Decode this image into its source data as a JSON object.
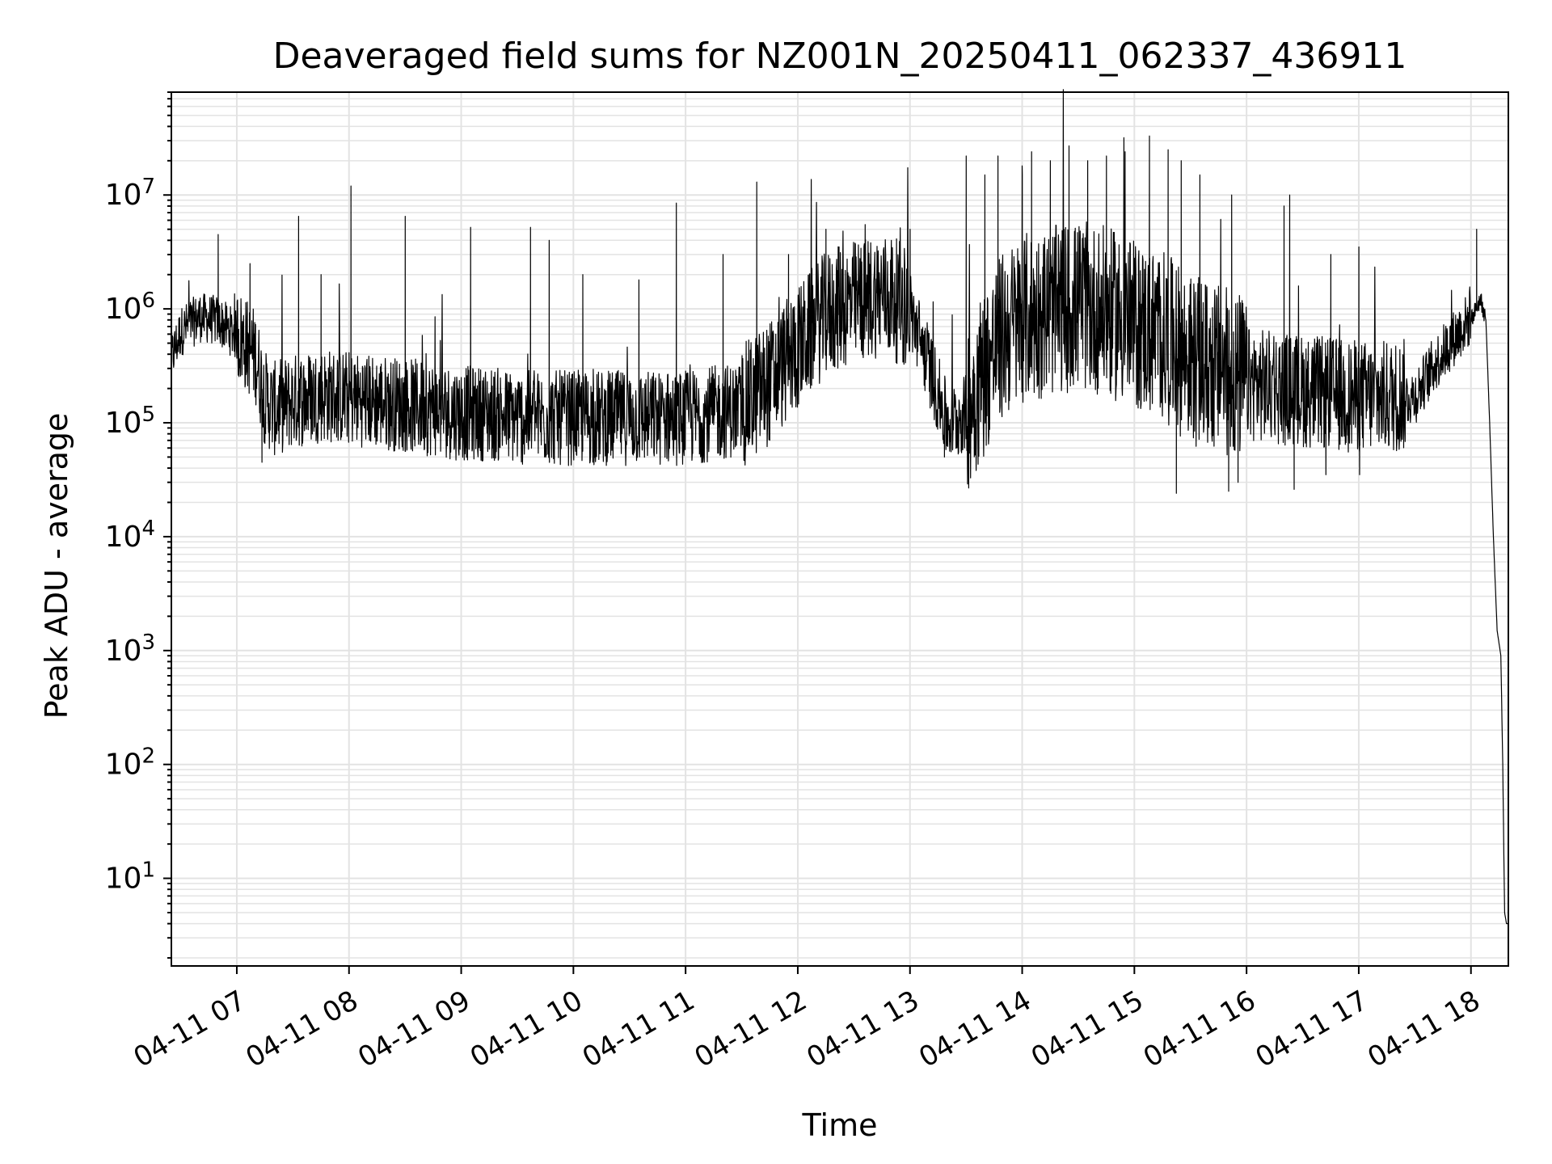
{
  "chart_data": {
    "type": "line",
    "title": "Deaveraged field sums for NZ001N_20250411_062337_436911",
    "xlabel": "Time",
    "ylabel": "Peak ADU - average",
    "x_ticks": [
      "04-11 07",
      "04-11 08",
      "04-11 09",
      "04-11 10",
      "04-11 11",
      "04-11 12",
      "04-11 13",
      "04-11 14",
      "04-11 15",
      "04-11 16",
      "04-11 17",
      "04-11 18"
    ],
    "y_ticks": [
      "10^1",
      "10^2",
      "10^3",
      "10^4",
      "10^5",
      "10^6",
      "10^7"
    ],
    "y_scale": "log",
    "xlim": [
      "2025-04-11 06:25",
      "2025-04-11 18:20"
    ],
    "ylim": [
      1.7,
      80000000
    ],
    "grid": true,
    "line_color": "#000000",
    "grid_color": "#e3e3e3",
    "series": [
      {
        "x": [
          "06:25",
          "06:30",
          "06:40",
          "06:50",
          "07:00",
          "07:10",
          "07:15",
          "07:20",
          "07:30",
          "07:45",
          "08:00",
          "08:15",
          "08:30",
          "08:45",
          "09:00",
          "09:15",
          "09:30",
          "09:45",
          "10:00",
          "10:15",
          "10:30",
          "10:45",
          "11:00",
          "11:15",
          "11:30",
          "11:45",
          "12:00",
          "12:15",
          "12:30",
          "12:45",
          "13:00",
          "13:10",
          "13:20",
          "13:30",
          "13:40",
          "13:50",
          "14:00",
          "14:15",
          "14:30",
          "14:45",
          "15:00",
          "15:15",
          "15:30",
          "15:45",
          "16:00",
          "16:15",
          "16:30",
          "16:45",
          "17:00",
          "17:15",
          "17:30",
          "17:40",
          "17:50",
          "18:00",
          "18:03",
          "18:05",
          "18:08",
          "18:10",
          "18:12",
          "18:14",
          "18:16",
          "18:17",
          "18:18",
          "18:19",
          "18:20"
        ],
        "y": [
          350000,
          600000,
          800000,
          750000,
          550000,
          350000,
          150000,
          120000,
          140000,
          160000,
          150000,
          140000,
          130000,
          120000,
          110000,
          110000,
          100000,
          100000,
          100000,
          100000,
          100000,
          100000,
          100000,
          110000,
          120000,
          200000,
          400000,
          800000,
          1000000,
          1200000,
          900000,
          300000,
          90000,
          110000,
          250000,
          500000,
          700000,
          800000,
          900000,
          800000,
          600000,
          500000,
          300000,
          250000,
          200000,
          180000,
          170000,
          160000,
          150000,
          150000,
          160000,
          300000,
          500000,
          800000,
          1000000,
          1200000,
          800000,
          100000,
          10000,
          1500,
          900,
          100,
          5,
          4,
          4
        ]
      }
    ],
    "spikes": [
      {
        "x": "06:50",
        "y": 4500000
      },
      {
        "x": "07:07",
        "y": 2500000
      },
      {
        "x": "07:33",
        "y": 6500000
      },
      {
        "x": "07:45",
        "y": 2000000
      },
      {
        "x": "08:01",
        "y": 12000000
      },
      {
        "x": "08:30",
        "y": 6500000
      },
      {
        "x": "09:05",
        "y": 5200000
      },
      {
        "x": "09:37",
        "y": 5200000
      },
      {
        "x": "09:47",
        "y": 4000000
      },
      {
        "x": "10:05",
        "y": 2000000
      },
      {
        "x": "10:35",
        "y": 1800000
      },
      {
        "x": "10:55",
        "y": 8500000
      },
      {
        "x": "11:20",
        "y": 3000000
      },
      {
        "x": "11:38",
        "y": 13000000
      },
      {
        "x": "11:55",
        "y": 3000000
      },
      {
        "x": "12:15",
        "y": 5000000
      },
      {
        "x": "12:22",
        "y": 3500000
      },
      {
        "x": "12:36",
        "y": 5500000
      },
      {
        "x": "12:50",
        "y": 4000000
      },
      {
        "x": "13:00",
        "y": 5000000
      },
      {
        "x": "13:30",
        "y": 22000000
      },
      {
        "x": "13:40",
        "y": 15000000
      },
      {
        "x": "13:47",
        "y": 22000000
      },
      {
        "x": "14:00",
        "y": 15000000
      },
      {
        "x": "14:05",
        "y": 24000000
      },
      {
        "x": "14:15",
        "y": 20000000
      },
      {
        "x": "14:25",
        "y": 27000000
      },
      {
        "x": "14:35",
        "y": 20000000
      },
      {
        "x": "14:45",
        "y": 22000000
      },
      {
        "x": "14:55",
        "y": 24000000
      },
      {
        "x": "15:08",
        "y": 33000000
      },
      {
        "x": "15:18",
        "y": 25000000
      },
      {
        "x": "15:25",
        "y": 20000000
      },
      {
        "x": "15:35",
        "y": 15000000
      },
      {
        "x": "15:52",
        "y": 10000000
      },
      {
        "x": "16:20",
        "y": 8000000
      },
      {
        "x": "16:23",
        "y": 10000000
      },
      {
        "x": "16:45",
        "y": 3000000
      },
      {
        "x": "17:00",
        "y": 3500000
      },
      {
        "x": "18:03",
        "y": 5000000
      }
    ],
    "dips": [
      {
        "x": "07:13",
        "y": 45000
      },
      {
        "x": "13:18",
        "y": 50000
      },
      {
        "x": "15:22",
        "y": 24000
      },
      {
        "x": "15:50",
        "y": 25000
      },
      {
        "x": "15:55",
        "y": 30000
      },
      {
        "x": "16:25",
        "y": 26000
      },
      {
        "x": "16:42",
        "y": 35000
      },
      {
        "x": "17:00",
        "y": 35000
      }
    ]
  }
}
